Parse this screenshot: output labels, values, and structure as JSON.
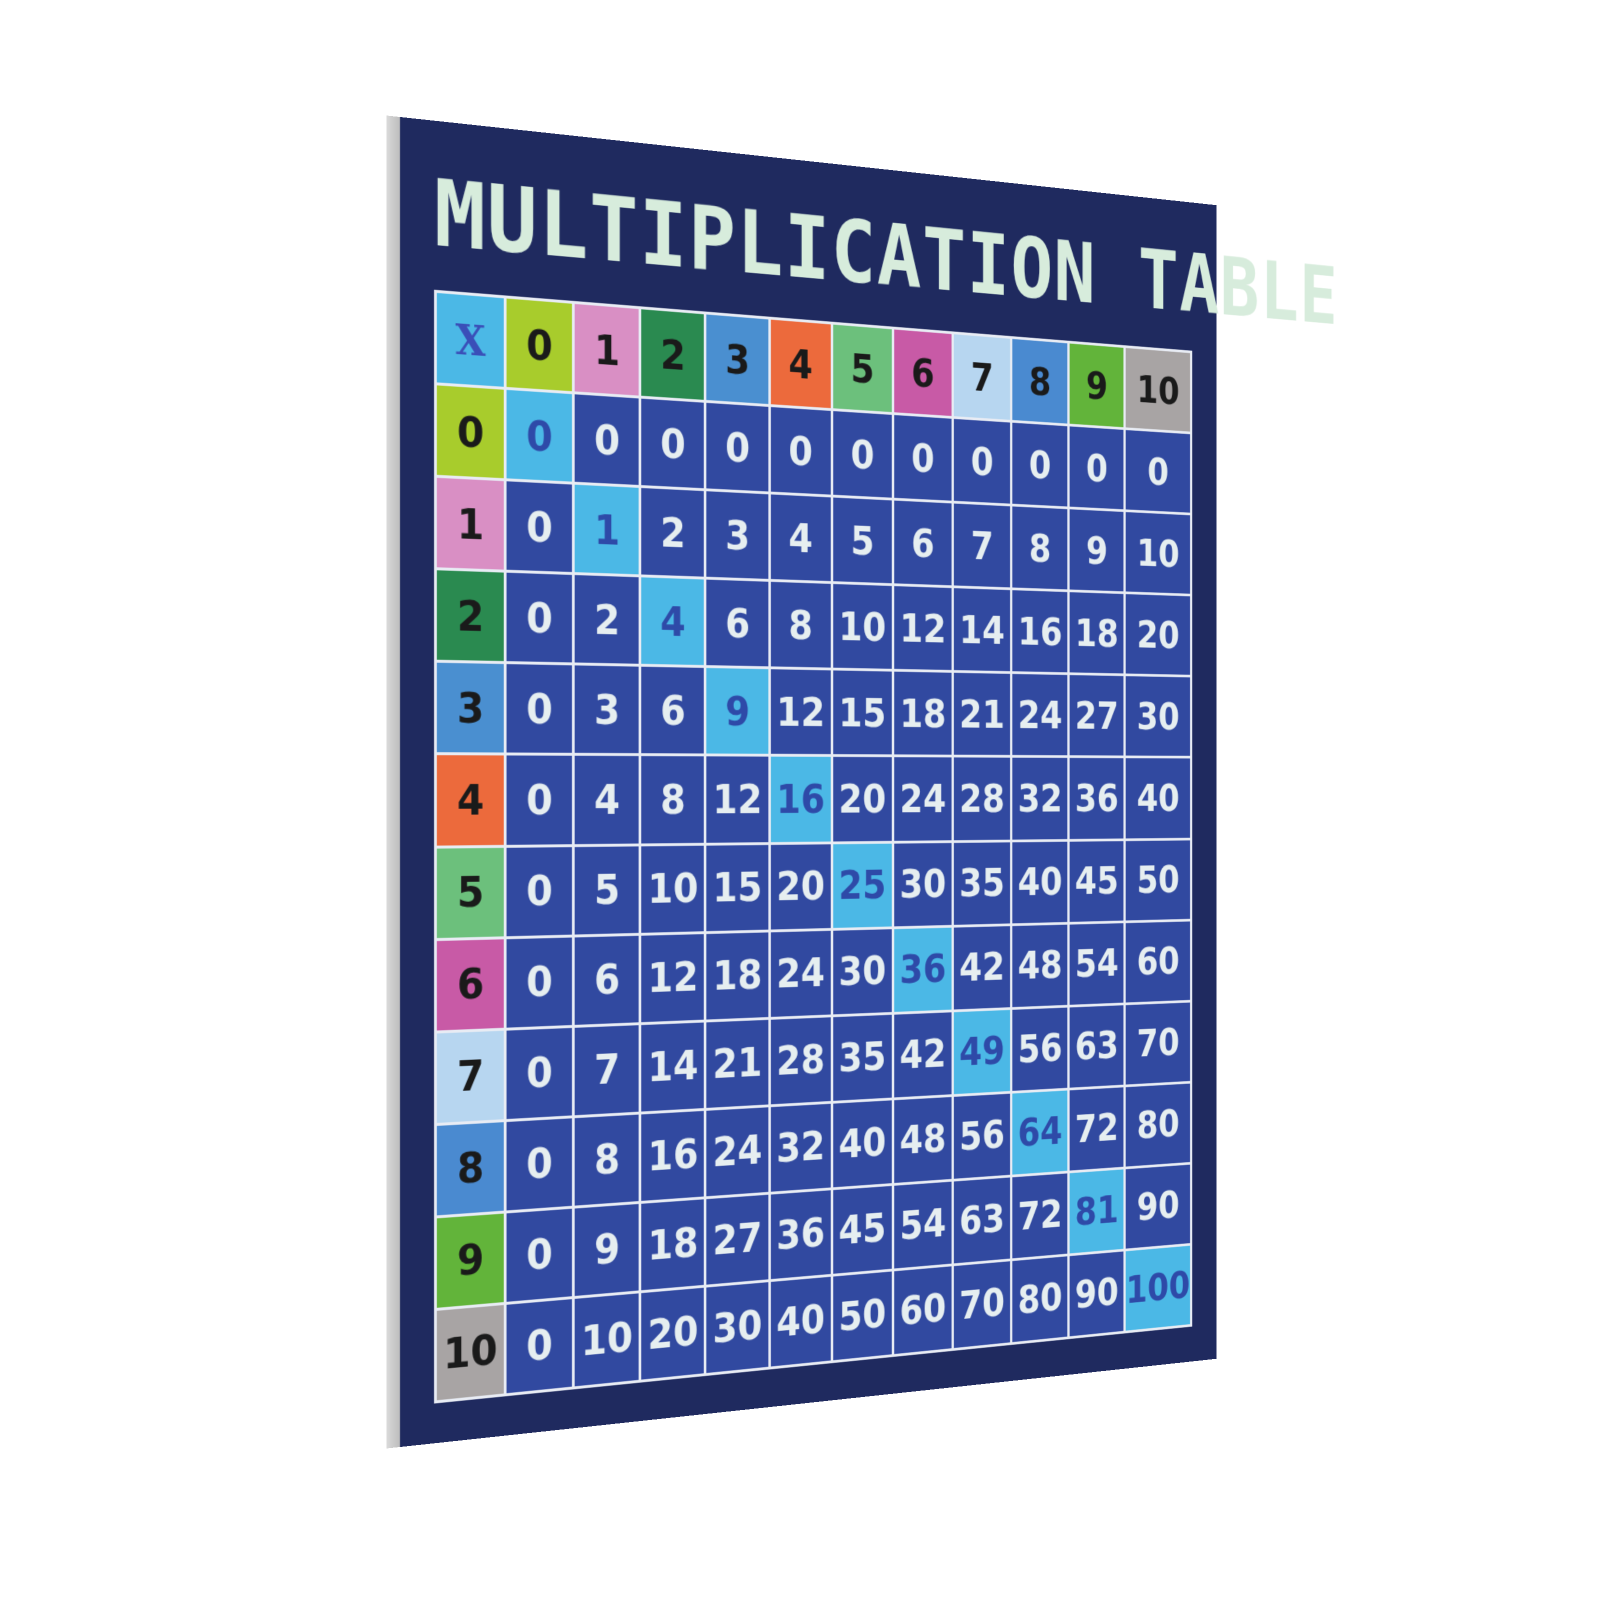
{
  "title": "MULTIPLICATION TABLE",
  "corner_label": "X",
  "headers": [
    "0",
    "1",
    "2",
    "3",
    "4",
    "5",
    "6",
    "7",
    "8",
    "9",
    "10"
  ],
  "header_colors": [
    "#a8cc2c",
    "#d98fc4",
    "#2a8a50",
    "#4a8fd0",
    "#ec6a3c",
    "#6cc07c",
    "#c85aa6",
    "#b7d6f0",
    "#4a8ad0",
    "#62b43a",
    "#a8a4a4"
  ],
  "corner_color": "#4bb8e6",
  "cell_color": "#3149a0",
  "diagonal_color": "#4bb8e6",
  "background_color": "#1f2a5f",
  "rows": [
    [
      "0",
      "0",
      "0",
      "0",
      "0",
      "0",
      "0",
      "0",
      "0",
      "0",
      "0"
    ],
    [
      "0",
      "1",
      "2",
      "3",
      "4",
      "5",
      "6",
      "7",
      "8",
      "9",
      "10"
    ],
    [
      "0",
      "2",
      "4",
      "6",
      "8",
      "10",
      "12",
      "14",
      "16",
      "18",
      "20"
    ],
    [
      "0",
      "3",
      "6",
      "9",
      "12",
      "15",
      "18",
      "21",
      "24",
      "27",
      "30"
    ],
    [
      "0",
      "4",
      "8",
      "12",
      "16",
      "20",
      "24",
      "28",
      "32",
      "36",
      "40"
    ],
    [
      "0",
      "5",
      "10",
      "15",
      "20",
      "25",
      "30",
      "35",
      "40",
      "45",
      "50"
    ],
    [
      "0",
      "6",
      "12",
      "18",
      "24",
      "30",
      "36",
      "42",
      "48",
      "54",
      "60"
    ],
    [
      "0",
      "7",
      "14",
      "21",
      "28",
      "35",
      "42",
      "49",
      "56",
      "63",
      "70"
    ],
    [
      "0",
      "8",
      "16",
      "24",
      "32",
      "40",
      "48",
      "56",
      "64",
      "72",
      "80"
    ],
    [
      "0",
      "9",
      "18",
      "27",
      "36",
      "45",
      "54",
      "63",
      "72",
      "81",
      "90"
    ],
    [
      "0",
      "10",
      "20",
      "30",
      "40",
      "50",
      "60",
      "70",
      "80",
      "90",
      "100"
    ]
  ]
}
